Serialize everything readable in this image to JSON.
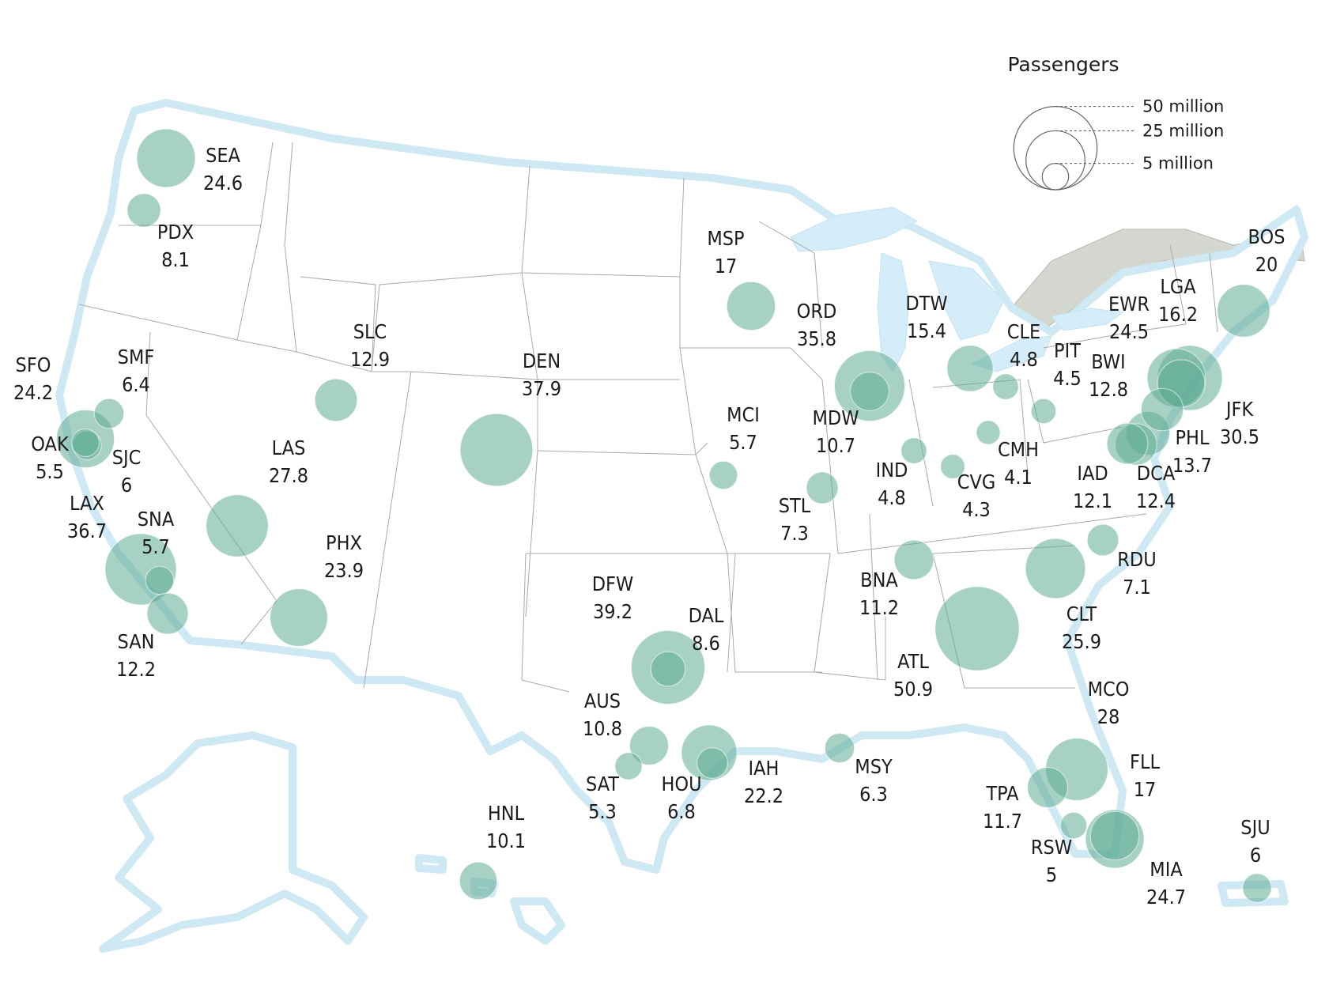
{
  "legend": {
    "title": "Passengers",
    "entries": [
      {
        "label": "50 million",
        "value": 50
      },
      {
        "label": "25 million",
        "value": 25
      },
      {
        "label": "5 million",
        "value": 5
      }
    ]
  },
  "colors": {
    "bubble": "#5fab94",
    "land": "#ffffff",
    "coast_glow": "#cfe9f4",
    "lake": "#d5edf8",
    "canada": "#d4d7d0",
    "state_line": "#a9aca6"
  },
  "chart_data": {
    "type": "bubble-map",
    "unit": "million passengers",
    "airports": [
      {
        "code": "SEA",
        "value": "24.6",
        "v": 24.6
      },
      {
        "code": "PDX",
        "value": "8.1",
        "v": 8.1
      },
      {
        "code": "SFO",
        "value": "24.2",
        "v": 24.2
      },
      {
        "code": "SMF",
        "value": "6.4",
        "v": 6.4
      },
      {
        "code": "OAK",
        "value": "5.5",
        "v": 5.5
      },
      {
        "code": "SJC",
        "value": "6",
        "v": 6
      },
      {
        "code": "LAX",
        "value": "36.7",
        "v": 36.7
      },
      {
        "code": "SNA",
        "value": "5.7",
        "v": 5.7
      },
      {
        "code": "SAN",
        "value": "12.2",
        "v": 12.2
      },
      {
        "code": "SLC",
        "value": "12.9",
        "v": 12.9
      },
      {
        "code": "LAS",
        "value": "27.8",
        "v": 27.8
      },
      {
        "code": "PHX",
        "value": "23.9",
        "v": 23.9
      },
      {
        "code": "DEN",
        "value": "37.9",
        "v": 37.9
      },
      {
        "code": "MSP",
        "value": "17",
        "v": 17
      },
      {
        "code": "MCI",
        "value": "5.7",
        "v": 5.7
      },
      {
        "code": "ORD",
        "value": "35.8",
        "v": 35.8
      },
      {
        "code": "MDW",
        "value": "10.7",
        "v": 10.7
      },
      {
        "code": "STL",
        "value": "7.3",
        "v": 7.3
      },
      {
        "code": "DTW",
        "value": "15.4",
        "v": 15.4
      },
      {
        "code": "IND",
        "value": "4.8",
        "v": 4.8
      },
      {
        "code": "CLE",
        "value": "4.8",
        "v": 4.8
      },
      {
        "code": "CMH",
        "value": "4.1",
        "v": 4.1
      },
      {
        "code": "CVG",
        "value": "4.3",
        "v": 4.3
      },
      {
        "code": "PIT",
        "value": "4.5",
        "v": 4.5
      },
      {
        "code": "BOS",
        "value": "20",
        "v": 20
      },
      {
        "code": "LGA",
        "value": "16.2",
        "v": 16.2
      },
      {
        "code": "EWR",
        "value": "24.5",
        "v": 24.5
      },
      {
        "code": "JFK",
        "value": "30.5",
        "v": 30.5
      },
      {
        "code": "BWI",
        "value": "12.8",
        "v": 12.8
      },
      {
        "code": "PHL",
        "value": "13.7",
        "v": 13.7
      },
      {
        "code": "IAD",
        "value": "12.1",
        "v": 12.1
      },
      {
        "code": "DCA",
        "value": "12.4",
        "v": 12.4
      },
      {
        "code": "RDU",
        "value": "7.1",
        "v": 7.1
      },
      {
        "code": "CLT",
        "value": "25.9",
        "v": 25.9
      },
      {
        "code": "BNA",
        "value": "11.2",
        "v": 11.2
      },
      {
        "code": "ATL",
        "value": "50.9",
        "v": 50.9
      },
      {
        "code": "DFW",
        "value": "39.2",
        "v": 39.2
      },
      {
        "code": "DAL",
        "value": "8.6",
        "v": 8.6
      },
      {
        "code": "AUS",
        "value": "10.8",
        "v": 10.8
      },
      {
        "code": "SAT",
        "value": "5.3",
        "v": 5.3
      },
      {
        "code": "HOU",
        "value": "6.8",
        "v": 6.8
      },
      {
        "code": "IAH",
        "value": "22.2",
        "v": 22.2
      },
      {
        "code": "MSY",
        "value": "6.3",
        "v": 6.3
      },
      {
        "code": "MCO",
        "value": "28",
        "v": 28
      },
      {
        "code": "TPA",
        "value": "11.7",
        "v": 11.7
      },
      {
        "code": "FLL",
        "value": "17",
        "v": 17
      },
      {
        "code": "RSW",
        "value": "5",
        "v": 5
      },
      {
        "code": "MIA",
        "value": "24.7",
        "v": 24.7
      },
      {
        "code": "HNL",
        "value": "10.1",
        "v": 10.1
      },
      {
        "code": "SJU",
        "value": "6",
        "v": 6
      }
    ]
  }
}
